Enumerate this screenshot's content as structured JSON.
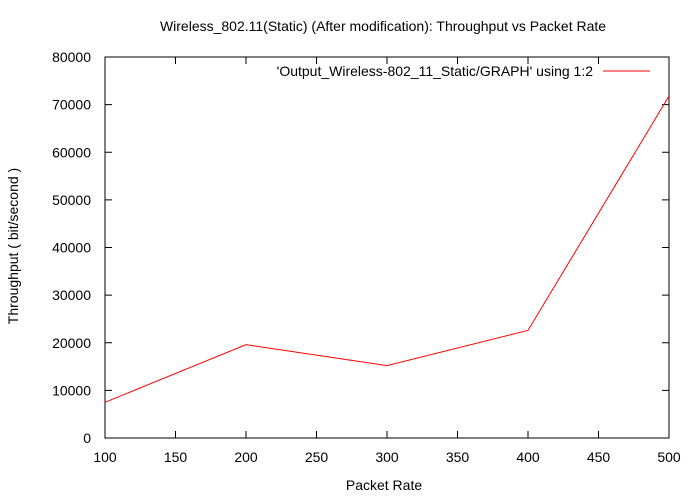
{
  "chart_data": {
    "type": "line",
    "title": "Wireless_802.11(Static) (After modification): Throughput vs Packet Rate",
    "xlabel": "Packet Rate",
    "ylabel": "Throughput ( bit/second )",
    "xlim": [
      100,
      500
    ],
    "ylim": [
      0,
      80000
    ],
    "xticks": [
      100,
      150,
      200,
      250,
      300,
      350,
      400,
      450,
      500
    ],
    "yticks": [
      0,
      10000,
      20000,
      30000,
      40000,
      50000,
      60000,
      70000,
      80000
    ],
    "grid": false,
    "legend_position": "top-right",
    "series": [
      {
        "name": "'Output_Wireless-802_11_Static/GRAPH' using 1:2",
        "color": "#ff0000",
        "x": [
          100,
          200,
          300,
          400,
          500
        ],
        "y": [
          7500,
          19600,
          15200,
          22600,
          71800
        ]
      }
    ]
  }
}
